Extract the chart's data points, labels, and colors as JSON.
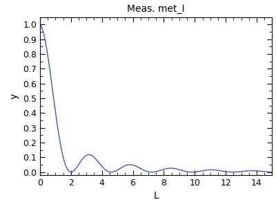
{
  "title": "Meas. met_I",
  "xlabel": "L",
  "ylabel": "y",
  "xlim": [
    0,
    15
  ],
  "ylim": [
    -0.02,
    1.05
  ],
  "xticks": [
    0,
    2,
    4,
    6,
    8,
    10,
    12,
    14
  ],
  "yticks": [
    0.0,
    0.1,
    0.2,
    0.3,
    0.4,
    0.5,
    0.6,
    0.7,
    0.8,
    0.9,
    1.0
  ],
  "line_color": "#4455bb",
  "bg_color": "#ffffff",
  "fig_bg_color": "#ffffff",
  "title_fontsize": 10,
  "label_fontsize": 10,
  "tick_fontsize": 9
}
